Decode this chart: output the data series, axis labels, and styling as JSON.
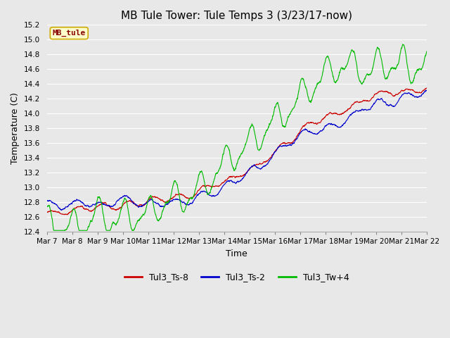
{
  "title": "MB Tule Tower: Tule Temps 3 (3/23/17-now)",
  "xlabel": "Time",
  "ylabel": "Temperature (C)",
  "ylim": [
    12.4,
    15.2
  ],
  "yticks": [
    12.4,
    12.6,
    12.8,
    13.0,
    13.2,
    13.4,
    13.6,
    13.8,
    14.0,
    14.2,
    14.4,
    14.6,
    14.8,
    15.0,
    15.2
  ],
  "xtick_labels": [
    "Mar 7",
    "Mar 8",
    "Mar 9",
    "Mar 10",
    "Mar 11",
    "Mar 12",
    "Mar 13",
    "Mar 14",
    "Mar 15",
    "Mar 16",
    "Mar 17",
    "Mar 18",
    "Mar 19",
    "Mar 20",
    "Mar 21",
    "Mar 22"
  ],
  "series": {
    "Tul3_Ts-8": {
      "color": "#cc0000",
      "lw": 0.8
    },
    "Tul3_Ts-2": {
      "color": "#0000cc",
      "lw": 0.8
    },
    "Tul3_Tw+4": {
      "color": "#00bb00",
      "lw": 0.8
    }
  },
  "background_color": "#e8e8e8",
  "plot_bg_color": "#e8e8e8",
  "grid_color": "#ffffff",
  "legend_label": "MB_tule",
  "legend_bg": "#ffffcc",
  "legend_border": "#ccaa00",
  "legend_text_color": "#880000",
  "title_fontsize": 11,
  "axis_fontsize": 9,
  "tick_fontsize": 7.5
}
